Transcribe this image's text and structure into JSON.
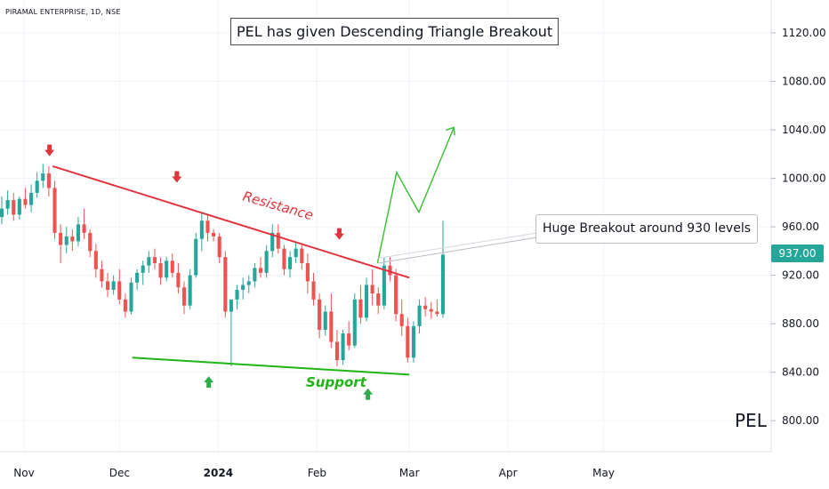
{
  "chart_data": {
    "type": "candlestick",
    "symbol_line": "PIRAMAL ENTERPRISE, 1D, NSE",
    "title": "PEL has given Descending Triangle Breakout",
    "watermark": "PEL",
    "last_price_label": "937.00",
    "annotations": {
      "resistance_label": "Resistance",
      "support_label": "Support",
      "callout_text": "Huge Breakout around 930 levels"
    },
    "y_axis": {
      "ticks": [
        1120,
        1080,
        1040,
        1000,
        960,
        920,
        880,
        840,
        800
      ],
      "tick_labels": [
        "1120.00",
        "1080.00",
        "1040.00",
        "1000.00",
        "960.00",
        "920.00",
        "880.00",
        "840.00",
        "800.00"
      ]
    },
    "x_axis": {
      "tick_labels": [
        "Nov",
        "Dec",
        "2024",
        "Feb",
        "Mar",
        "Apr",
        "May"
      ],
      "bold_label": "2024"
    },
    "lines": {
      "resistance": {
        "start": [
          "2023-11-10",
          1010
        ],
        "end": [
          "2024-03-01",
          918
        ]
      },
      "support": {
        "start": [
          "2023-12-05",
          852
        ],
        "end": [
          "2024-03-01",
          838
        ]
      }
    },
    "projection_path": [
      [
        "2024-02-20",
        930
      ],
      [
        "2024-02-26",
        1005
      ],
      [
        "2024-03-04",
        972
      ],
      [
        "2024-03-15",
        1042
      ]
    ],
    "candles": [
      [
        968,
        985,
        962,
        975
      ],
      [
        975,
        990,
        970,
        982
      ],
      [
        982,
        988,
        965,
        970
      ],
      [
        970,
        985,
        966,
        983
      ],
      [
        983,
        992,
        975,
        978
      ],
      [
        978,
        995,
        972,
        988
      ],
      [
        988,
        1005,
        984,
        998
      ],
      [
        998,
        1012,
        992,
        1004
      ],
      [
        1004,
        1010,
        985,
        992
      ],
      [
        992,
        998,
        950,
        955
      ],
      [
        955,
        962,
        930,
        945
      ],
      [
        945,
        960,
        938,
        952
      ],
      [
        952,
        958,
        940,
        948
      ],
      [
        948,
        968,
        944,
        962
      ],
      [
        962,
        975,
        950,
        955
      ],
      [
        955,
        958,
        935,
        940
      ],
      [
        940,
        946,
        918,
        925
      ],
      [
        925,
        932,
        910,
        915
      ],
      [
        915,
        922,
        902,
        908
      ],
      [
        908,
        920,
        904,
        915
      ],
      [
        915,
        925,
        896,
        900
      ],
      [
        900,
        905,
        885,
        890
      ],
      [
        890,
        918,
        888,
        914
      ],
      [
        914,
        925,
        908,
        922
      ],
      [
        922,
        932,
        912,
        928
      ],
      [
        928,
        940,
        922,
        935
      ],
      [
        935,
        942,
        925,
        930
      ],
      [
        930,
        935,
        912,
        918
      ],
      [
        918,
        935,
        915,
        932
      ],
      [
        932,
        938,
        918,
        922
      ],
      [
        922,
        930,
        905,
        910
      ],
      [
        910,
        915,
        888,
        895
      ],
      [
        895,
        925,
        892,
        920
      ],
      [
        920,
        955,
        918,
        950
      ],
      [
        950,
        972,
        940,
        965
      ],
      [
        965,
        970,
        948,
        955
      ],
      [
        955,
        958,
        948,
        952
      ],
      [
        952,
        955,
        930,
        935
      ],
      [
        935,
        940,
        885,
        890
      ],
      [
        890,
        900,
        845,
        900
      ],
      [
        900,
        912,
        892,
        908
      ],
      [
        908,
        918,
        900,
        912
      ],
      [
        912,
        920,
        905,
        915
      ],
      [
        915,
        930,
        910,
        926
      ],
      [
        926,
        935,
        918,
        922
      ],
      [
        922,
        945,
        918,
        940
      ],
      [
        940,
        962,
        935,
        955
      ],
      [
        955,
        962,
        938,
        942
      ],
      [
        942,
        945,
        920,
        925
      ],
      [
        925,
        940,
        918,
        935
      ],
      [
        935,
        948,
        930,
        942
      ],
      [
        942,
        946,
        925,
        930
      ],
      [
        930,
        938,
        905,
        915
      ],
      [
        915,
        922,
        895,
        900
      ],
      [
        900,
        905,
        868,
        875
      ],
      [
        875,
        895,
        870,
        890
      ],
      [
        890,
        905,
        860,
        865
      ],
      [
        865,
        875,
        845,
        850
      ],
      [
        850,
        875,
        846,
        872
      ],
      [
        872,
        882,
        858,
        862
      ],
      [
        862,
        905,
        860,
        900
      ],
      [
        900,
        912,
        880,
        885
      ],
      [
        885,
        918,
        882,
        912
      ],
      [
        912,
        925,
        895,
        905
      ],
      [
        905,
        910,
        888,
        895
      ],
      [
        895,
        935,
        892,
        928
      ],
      [
        928,
        935,
        915,
        920
      ],
      [
        920,
        925,
        882,
        888
      ],
      [
        888,
        900,
        870,
        878
      ],
      [
        878,
        885,
        848,
        852
      ],
      [
        852,
        882,
        848,
        878
      ],
      [
        878,
        900,
        872,
        895
      ],
      [
        895,
        902,
        886,
        892
      ],
      [
        892,
        898,
        884,
        890
      ],
      [
        890,
        900,
        886,
        888
      ],
      [
        888,
        965,
        885,
        937
      ]
    ]
  }
}
